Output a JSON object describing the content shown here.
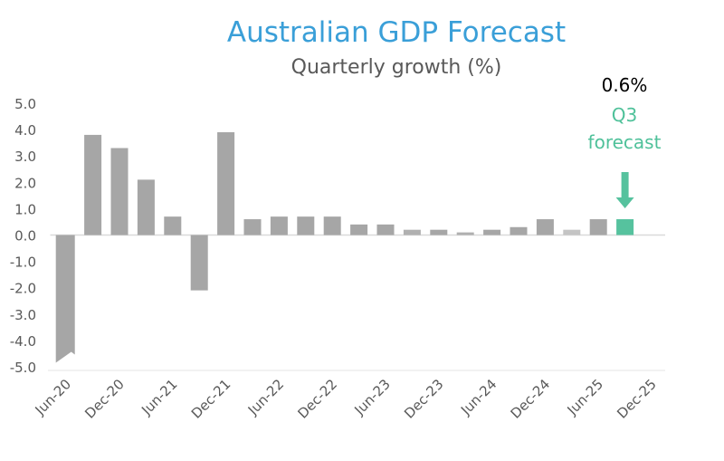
{
  "chart_data": {
    "type": "bar",
    "title": "Australian GDP Forecast",
    "subtitle": "Quarterly growth (%)",
    "xlabel": "",
    "ylabel": "",
    "ylim": [
      -5.0,
      5.0
    ],
    "yticks": [
      "5.0",
      "4.0",
      "3.0",
      "2.0",
      "1.0",
      "0.0",
      "-1.0",
      "-2.0",
      "-3.0",
      "-4.0",
      "-5.0"
    ],
    "categories": [
      "Jun-20",
      "Sep-20",
      "Dec-20",
      "Mar-21",
      "Jun-21",
      "Sep-21",
      "Dec-21",
      "Mar-22",
      "Jun-22",
      "Sep-22",
      "Dec-22",
      "Mar-23",
      "Jun-23",
      "Sep-23",
      "Dec-23",
      "Mar-24",
      "Jun-24",
      "Sep-24",
      "Dec-24",
      "Mar-25",
      "Jun-25",
      "Sep-25",
      "Dec-25"
    ],
    "xtick_labels": [
      "Jun-20",
      "Dec-20",
      "Jun-21",
      "Dec-21",
      "Jun-22",
      "Dec-22",
      "Jun-23",
      "Dec-23",
      "Jun-24",
      "Dec-24",
      "Jun-25",
      "Dec-25"
    ],
    "values": [
      -4.5,
      3.8,
      3.3,
      2.1,
      0.7,
      -2.1,
      3.9,
      0.6,
      0.7,
      0.7,
      0.7,
      0.4,
      0.4,
      0.2,
      0.2,
      0.1,
      0.2,
      0.3,
      0.6,
      0.2,
      0.6,
      0.6,
      null
    ],
    "truncated_bars": [
      "Jun-20"
    ],
    "forecast_category": "Sep-25",
    "grid": false,
    "annotation": {
      "value": "0.6%",
      "label_line1": "Q3",
      "label_line2": "forecast"
    },
    "colors": {
      "bar": "#a6a6a6",
      "bar_light": "#c4c4c4",
      "forecast": "#56c29e",
      "title": "#3a9fd8"
    }
  }
}
